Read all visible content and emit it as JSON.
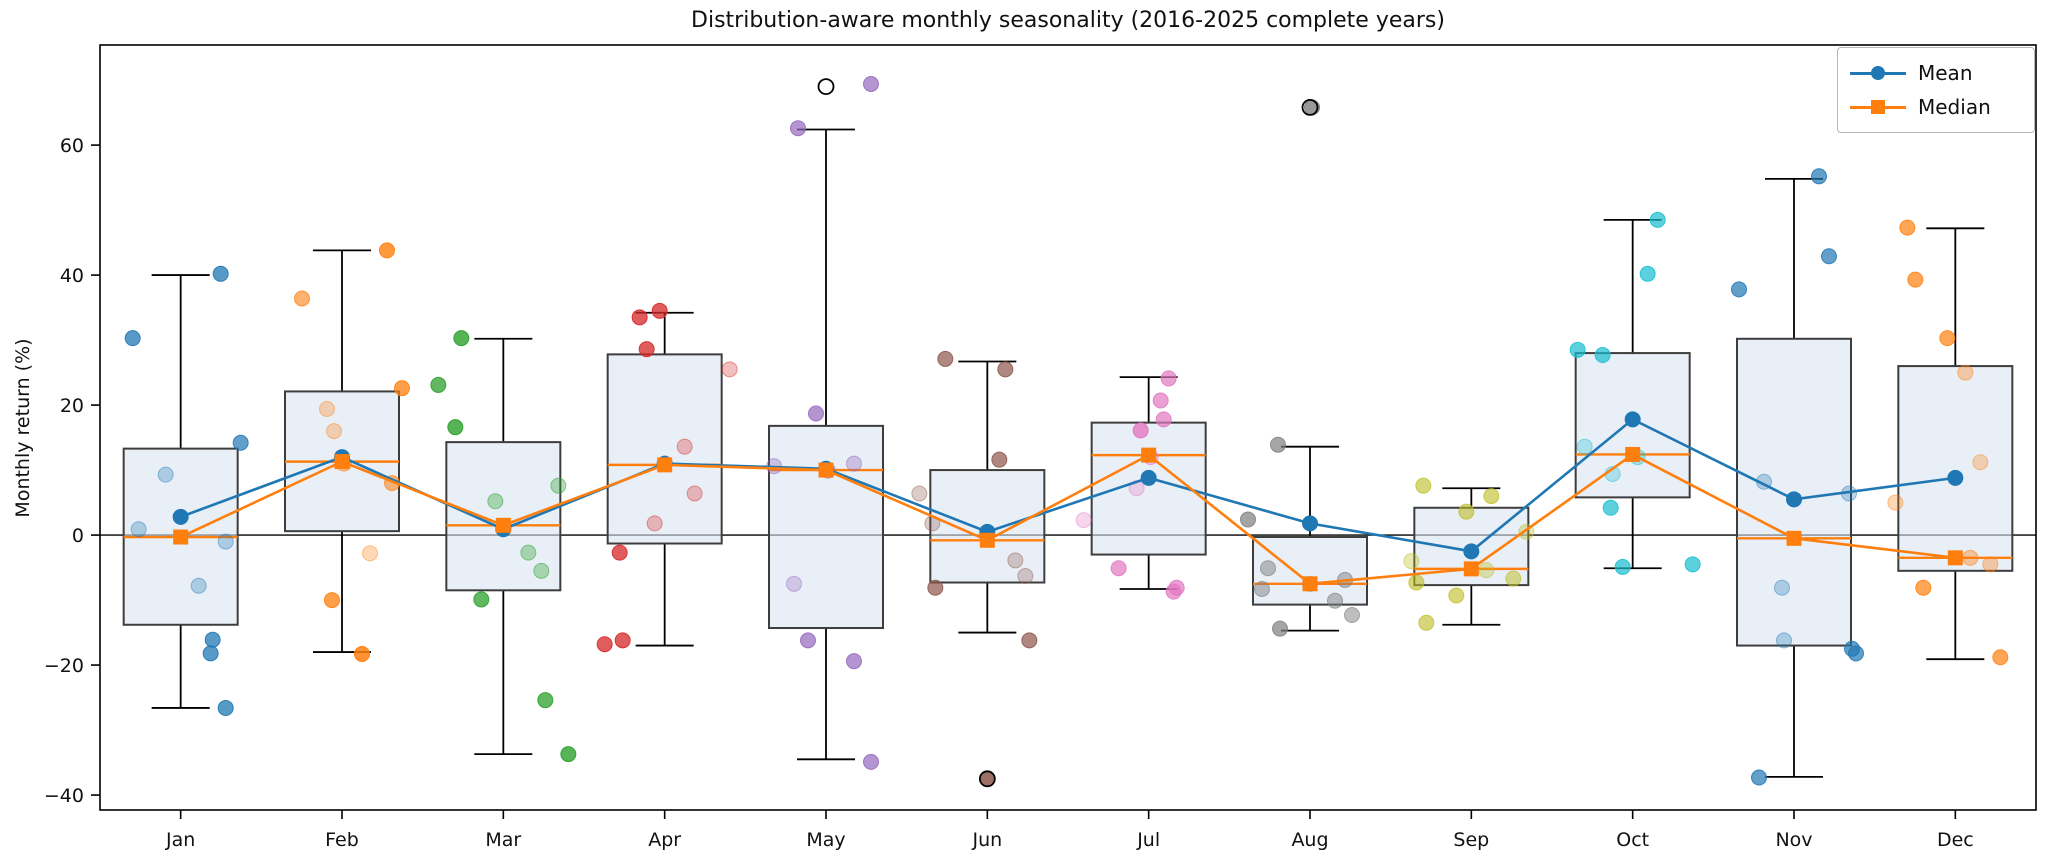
{
  "figure": {
    "background": "#ffffff"
  },
  "chart_data": {
    "type": "box",
    "title": "Distribution-aware monthly seasonality (2016-2025 complete years)",
    "ylabel": "Monthly return (%)",
    "xlabel": "",
    "categories": [
      "Jan",
      "Feb",
      "Mar",
      "Apr",
      "May",
      "Jun",
      "Jul",
      "Aug",
      "Sep",
      "Oct",
      "Nov",
      "Dec"
    ],
    "ylim": [
      -42.3,
      75.4
    ],
    "yticks": [
      {
        "value": 60,
        "label": "60"
      },
      {
        "value": 40,
        "label": "40"
      },
      {
        "value": 20,
        "label": "20"
      },
      {
        "value": 0,
        "label": "0"
      },
      {
        "value": -20,
        "label": "−20"
      },
      {
        "value": -40,
        "label": "−40"
      }
    ],
    "zero_line": true,
    "grid": false,
    "legend_position": "upper right",
    "legend": [
      {
        "label": "Mean",
        "color": "#1f77b4",
        "marker": "circle"
      },
      {
        "label": "Median",
        "color": "#ff7f0e",
        "marker": "square"
      }
    ],
    "series": [
      {
        "name": "Mean",
        "color": "#1f77b4",
        "marker": "circle",
        "values": [
          2.8,
          12.0,
          0.9,
          11.0,
          10.2,
          0.5,
          8.8,
          1.8,
          -2.5,
          17.8,
          5.5,
          8.8
        ]
      },
      {
        "name": "Median",
        "color": "#ff7f0e",
        "marker": "square",
        "values": [
          -0.3,
          11.3,
          1.5,
          10.8,
          10.0,
          -0.8,
          12.3,
          -7.5,
          -5.2,
          12.4,
          -0.5,
          -3.5
        ]
      }
    ],
    "boxes": [
      {
        "month": "Jan",
        "whislo": -26.6,
        "q1": -13.8,
        "med": -0.3,
        "q3": 13.3,
        "whishi": 40.0,
        "fliers": []
      },
      {
        "month": "Feb",
        "whislo": -18.0,
        "q1": 0.6,
        "med": 11.3,
        "q3": 22.1,
        "whishi": 43.8,
        "fliers": []
      },
      {
        "month": "Mar",
        "whislo": -33.7,
        "q1": -8.5,
        "med": 1.5,
        "q3": 14.3,
        "whishi": 30.2,
        "fliers": []
      },
      {
        "month": "Apr",
        "whislo": -17.0,
        "q1": -1.3,
        "med": 10.8,
        "q3": 27.8,
        "whishi": 34.2,
        "fliers": []
      },
      {
        "month": "May",
        "whislo": -34.5,
        "q1": -14.3,
        "med": 10.0,
        "q3": 16.8,
        "whishi": 62.4,
        "fliers": [
          69.0
        ]
      },
      {
        "month": "Jun",
        "whislo": -15.0,
        "q1": -7.3,
        "med": -0.8,
        "q3": 10.0,
        "whishi": 26.7,
        "fliers": [
          -37.5
        ]
      },
      {
        "month": "Jul",
        "whislo": -8.3,
        "q1": -3.0,
        "med": 12.3,
        "q3": 17.3,
        "whishi": 24.3,
        "fliers": []
      },
      {
        "month": "Aug",
        "whislo": -14.7,
        "q1": -10.7,
        "med": -7.5,
        "q3": -0.3,
        "whishi": 13.6,
        "fliers": [
          65.8
        ]
      },
      {
        "month": "Sep",
        "whislo": -13.8,
        "q1": -7.7,
        "med": -5.2,
        "q3": 4.2,
        "whishi": 7.2,
        "fliers": []
      },
      {
        "month": "Oct",
        "whislo": -5.1,
        "q1": 5.8,
        "med": 12.4,
        "q3": 28.0,
        "whishi": 48.5,
        "fliers": []
      },
      {
        "month": "Nov",
        "whislo": -37.2,
        "q1": -17.0,
        "med": -0.5,
        "q3": 30.2,
        "whishi": 54.8,
        "fliers": []
      },
      {
        "month": "Dec",
        "whislo": -19.1,
        "q1": -5.5,
        "med": -3.5,
        "q3": 26.0,
        "whishi": 47.2,
        "fliers": []
      }
    ],
    "scatter": [
      {
        "month": "Jan",
        "color": "#1f77b4",
        "points": [
          [
            40.2,
            40,
            0.75
          ],
          [
            30.3,
            -48,
            0.75
          ],
          [
            14.2,
            60,
            0.7
          ],
          [
            9.3,
            -15,
            0.3
          ],
          [
            0.9,
            -42,
            0.3
          ],
          [
            -1.0,
            45,
            0.3
          ],
          [
            -7.8,
            18,
            0.3
          ],
          [
            -16.1,
            32,
            0.75
          ],
          [
            -18.2,
            30,
            0.75
          ],
          [
            -26.6,
            45,
            0.75
          ]
        ]
      },
      {
        "month": "Feb",
        "color": "#ff7f0e",
        "points": [
          [
            43.8,
            45,
            0.8
          ],
          [
            36.4,
            -40,
            0.6
          ],
          [
            22.6,
            60,
            0.75
          ],
          [
            19.4,
            -15,
            0.3
          ],
          [
            16.0,
            -8,
            0.3
          ],
          [
            11.0,
            2,
            0.4
          ],
          [
            8.0,
            50,
            0.55
          ],
          [
            -2.8,
            28,
            0.3
          ],
          [
            -10.0,
            -10,
            0.75
          ],
          [
            -18.3,
            20,
            0.85
          ]
        ]
      },
      {
        "month": "Mar",
        "color": "#2ca02c",
        "points": [
          [
            30.3,
            -42,
            0.8
          ],
          [
            23.1,
            -65,
            0.75
          ],
          [
            16.6,
            -48,
            0.8
          ],
          [
            7.6,
            55,
            0.35
          ],
          [
            5.2,
            -8,
            0.35
          ],
          [
            -2.7,
            25,
            0.35
          ],
          [
            -5.5,
            38,
            0.35
          ],
          [
            -9.9,
            -22,
            0.75
          ],
          [
            -25.4,
            42,
            0.75
          ],
          [
            -33.7,
            65,
            0.8
          ]
        ]
      },
      {
        "month": "Apr",
        "color": "#d62728",
        "points": [
          [
            34.5,
            -5,
            0.75
          ],
          [
            33.5,
            -25,
            0.75
          ],
          [
            28.6,
            -18,
            0.75
          ],
          [
            25.5,
            65,
            0.3
          ],
          [
            13.6,
            20,
            0.3
          ],
          [
            6.4,
            30,
            0.3
          ],
          [
            1.8,
            -10,
            0.3
          ],
          [
            -2.7,
            -45,
            0.75
          ],
          [
            -16.2,
            -42,
            0.75
          ],
          [
            -16.8,
            -60,
            0.75
          ]
        ]
      },
      {
        "month": "May",
        "color": "#9467bd",
        "points": [
          [
            69.4,
            45,
            0.7
          ],
          [
            62.6,
            -28,
            0.7
          ],
          [
            18.7,
            -10,
            0.7
          ],
          [
            11.0,
            28,
            0.35
          ],
          [
            10.6,
            -52,
            0.35
          ],
          [
            9.9,
            2,
            0.35
          ],
          [
            -7.5,
            -32,
            0.3
          ],
          [
            -16.2,
            -18,
            0.7
          ],
          [
            -19.4,
            28,
            0.7
          ],
          [
            -34.9,
            45,
            0.7
          ]
        ]
      },
      {
        "month": "Jun",
        "color": "#8c564b",
        "points": [
          [
            27.1,
            -42,
            0.7
          ],
          [
            25.5,
            18,
            0.7
          ],
          [
            11.6,
            12,
            0.7
          ],
          [
            6.4,
            -68,
            0.3
          ],
          [
            1.8,
            -55,
            0.3
          ],
          [
            -3.9,
            28,
            0.3
          ],
          [
            -6.3,
            38,
            0.3
          ],
          [
            -8.1,
            -52,
            0.7
          ],
          [
            -16.2,
            42,
            0.7
          ],
          [
            -37.5,
            0,
            0.85
          ]
        ]
      },
      {
        "month": "Jul",
        "color": "#e377c2",
        "points": [
          [
            24.1,
            20,
            0.7
          ],
          [
            20.7,
            12,
            0.7
          ],
          [
            17.8,
            15,
            0.7
          ],
          [
            16.1,
            -8,
            0.8
          ],
          [
            12.0,
            2,
            0.4
          ],
          [
            7.2,
            -12,
            0.3
          ],
          [
            2.3,
            -65,
            0.3
          ],
          [
            -5.1,
            -30,
            0.7
          ],
          [
            -8.1,
            28,
            0.7
          ],
          [
            -8.7,
            25,
            0.7
          ]
        ]
      },
      {
        "month": "Aug",
        "color": "#7f7f7f",
        "points": [
          [
            65.8,
            2,
            0.8
          ],
          [
            13.9,
            -32,
            0.7
          ],
          [
            2.4,
            -62,
            0.7
          ],
          [
            -5.1,
            -42,
            0.5
          ],
          [
            -6.9,
            35,
            0.5
          ],
          [
            -7.5,
            0,
            0.4
          ],
          [
            -8.3,
            -48,
            0.5
          ],
          [
            -10.1,
            25,
            0.5
          ],
          [
            -12.3,
            42,
            0.5
          ],
          [
            -14.4,
            -30,
            0.7
          ]
        ]
      },
      {
        "month": "Sep",
        "color": "#bcbd22",
        "points": [
          [
            7.6,
            -48,
            0.6
          ],
          [
            6.0,
            20,
            0.6
          ],
          [
            3.6,
            -5,
            0.6
          ],
          [
            0.5,
            55,
            0.35
          ],
          [
            -4.0,
            -60,
            0.35
          ],
          [
            -5.4,
            15,
            0.35
          ],
          [
            -6.7,
            42,
            0.5
          ],
          [
            -7.3,
            -55,
            0.6
          ],
          [
            -9.3,
            -15,
            0.6
          ],
          [
            -13.5,
            -45,
            0.6
          ]
        ]
      },
      {
        "month": "Oct",
        "color": "#17becf",
        "points": [
          [
            48.5,
            25,
            0.7
          ],
          [
            40.2,
            15,
            0.7
          ],
          [
            28.5,
            -55,
            0.7
          ],
          [
            27.7,
            -30,
            0.7
          ],
          [
            13.6,
            -48,
            0.3
          ],
          [
            12.0,
            5,
            0.35
          ],
          [
            9.4,
            -20,
            0.3
          ],
          [
            4.2,
            -22,
            0.7
          ],
          [
            -4.5,
            60,
            0.7
          ],
          [
            -4.9,
            -10,
            0.7
          ]
        ]
      },
      {
        "month": "Nov",
        "color": "#1f77b4",
        "points": [
          [
            55.2,
            25,
            0.7
          ],
          [
            42.9,
            35,
            0.7
          ],
          [
            37.8,
            -55,
            0.7
          ],
          [
            8.2,
            -30,
            0.3
          ],
          [
            6.4,
            55,
            0.3
          ],
          [
            -8.1,
            -12,
            0.3
          ],
          [
            -16.2,
            -10,
            0.3
          ],
          [
            -17.5,
            58,
            0.7
          ],
          [
            -18.2,
            62,
            0.7
          ],
          [
            -37.3,
            -35,
            0.7
          ]
        ]
      },
      {
        "month": "Dec",
        "color": "#ff7f0e",
        "points": [
          [
            47.3,
            -48,
            0.7
          ],
          [
            39.3,
            -40,
            0.7
          ],
          [
            30.3,
            -8,
            0.7
          ],
          [
            25.0,
            10,
            0.35
          ],
          [
            11.2,
            25,
            0.3
          ],
          [
            5.0,
            -60,
            0.3
          ],
          [
            -3.5,
            15,
            0.4
          ],
          [
            -4.5,
            35,
            0.35
          ],
          [
            -8.1,
            -32,
            0.7
          ],
          [
            -18.8,
            45,
            0.7
          ]
        ]
      }
    ],
    "box_style": {
      "face": "#dbe5f1",
      "face_opacity": 0.6,
      "edge": "#3d3d3d",
      "median_color": "#ff7f0e",
      "whisker_color": "#000000",
      "flier_edge": "#000000"
    }
  }
}
